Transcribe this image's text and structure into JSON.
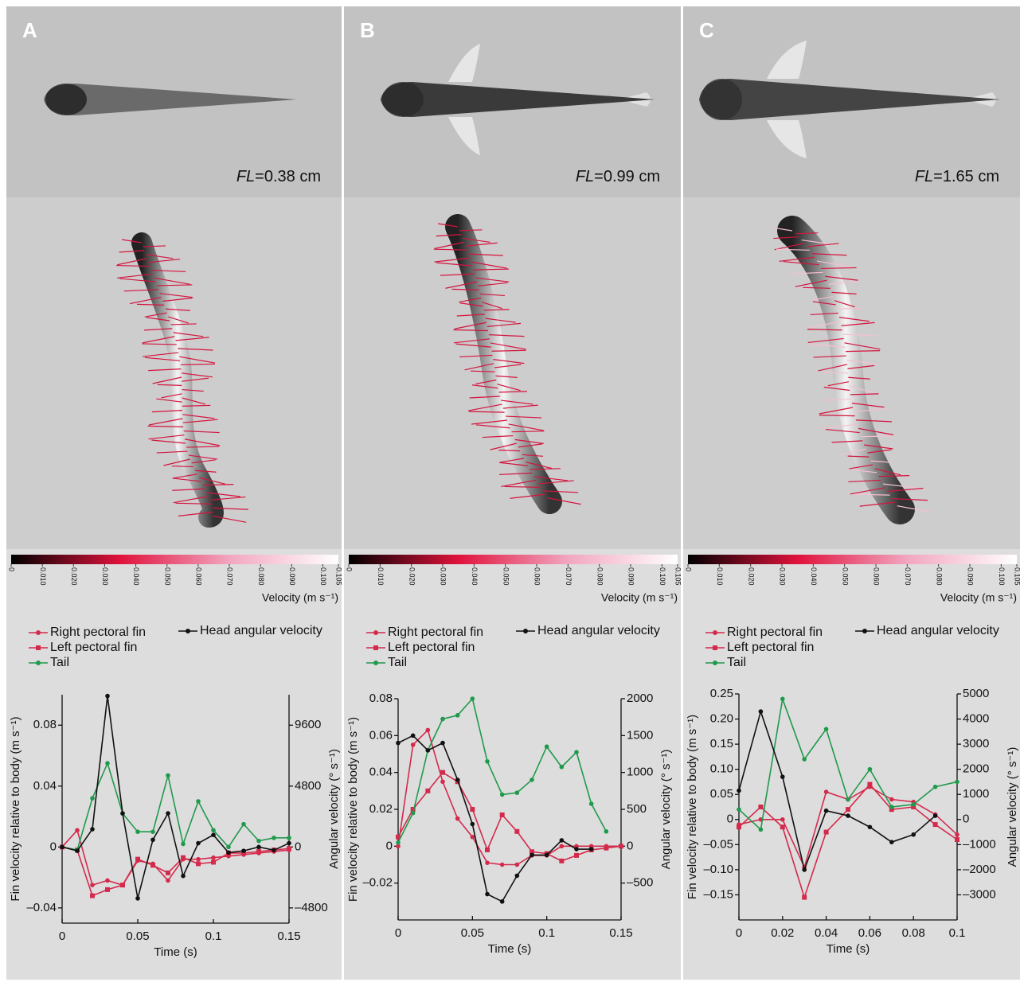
{
  "colorbar": {
    "label": "Velocity (m s⁻¹)",
    "lim": [
      0,
      0.105
    ],
    "colors": [
      "#000000",
      "#e0123c",
      "#f2a6c0",
      "#ffffff"
    ],
    "ticks": [
      0,
      {
        "value": 0.01,
        "label": "0.010"
      },
      {
        "value": 0.02,
        "label": "0.020"
      },
      {
        "value": 0.03,
        "label": "0.030"
      },
      {
        "value": 0.04,
        "label": "0.040"
      },
      {
        "value": 0.05,
        "label": "0.050"
      },
      {
        "value": 0.06,
        "label": "0.060"
      },
      {
        "value": 0.07,
        "label": "0.070"
      },
      {
        "value": 0.08,
        "label": "0.080"
      },
      {
        "value": 0.09,
        "label": "0.090"
      },
      {
        "value": 0.1,
        "label": "0.100"
      },
      0.105
    ]
  },
  "chart_data": [
    {
      "type": "line",
      "panel_label": "A",
      "fl_symbol": "FL",
      "fl_value": "=0.38 cm",
      "xlabel": "Time (s)",
      "ylabel": "Fin velocity relative to body (m s⁻¹)",
      "y2label": "Angular velocity (° s⁻¹)",
      "x": [
        0,
        0.01,
        0.02,
        0.03,
        0.04,
        0.05,
        0.06,
        0.07,
        0.08,
        0.09,
        0.1,
        0.11,
        0.12,
        0.13,
        0.14,
        0.15
      ],
      "xlim": [
        0,
        0.15
      ],
      "xticks": [
        0,
        0.05,
        0.1,
        0.15
      ],
      "ylim": [
        -0.05,
        0.1
      ],
      "yticks": [
        {
          "value": -0.04,
          "label": "–0.04"
        },
        0,
        0.04,
        0.08
      ],
      "y2lim": [
        -6000,
        12000
      ],
      "y2ticks": [
        {
          "value": -4800,
          "label": "–4800"
        },
        0,
        4800,
        9600
      ],
      "series": [
        {
          "name": "Right pectoral fin",
          "color": "#d42a4c",
          "marker": "circle",
          "values": [
            0,
            0.011,
            -0.025,
            -0.022,
            -0.025,
            -0.009,
            -0.011,
            -0.022,
            -0.008,
            -0.008,
            -0.007,
            -0.006,
            -0.005,
            -0.004,
            -0.003,
            -0.002
          ]
        },
        {
          "name": "Left pectoral fin",
          "color": "#d42a4c",
          "marker": "square",
          "values": [
            0,
            -0.002,
            -0.032,
            -0.028,
            -0.025,
            -0.008,
            -0.012,
            -0.017,
            -0.007,
            -0.011,
            -0.01,
            -0.004,
            -0.004,
            -0.003,
            -0.002,
            -0.001
          ]
        },
        {
          "name": "Tail",
          "color": "#1f9a4c",
          "marker": "circle",
          "values": [
            0,
            -0.002,
            0.032,
            0.055,
            0.022,
            0.01,
            0.01,
            0.047,
            0.002,
            0.03,
            0.011,
            0,
            0.015,
            0.004,
            0.006,
            0.006
          ]
        },
        {
          "name": "Head angular velocity",
          "color": "#111111",
          "marker": "circle",
          "axis": "y2",
          "values": [
            0,
            -300,
            1400,
            11900,
            2650,
            -4050,
            570,
            2650,
            -2280,
            300,
            950,
            -440,
            -300,
            0,
            -250,
            300
          ]
        }
      ]
    },
    {
      "type": "line",
      "panel_label": "B",
      "fl_symbol": "FL",
      "fl_value": "=0.99 cm",
      "xlabel": "Time (s)",
      "ylabel": "Fin velocity relative to body (m s⁻¹)",
      "y2label": "Angular velocity (° s⁻¹)",
      "x": [
        0,
        0.01,
        0.02,
        0.03,
        0.04,
        0.05,
        0.06,
        0.07,
        0.08,
        0.09,
        0.1,
        0.11,
        0.12,
        0.13,
        0.14,
        0.15
      ],
      "xlim": [
        0,
        0.15
      ],
      "xticks": [
        0,
        0.05,
        0.1,
        0.15
      ],
      "ylim": [
        -0.04,
        0.08
      ],
      "yticks": [
        {
          "value": -0.02,
          "label": "–0.02"
        },
        0,
        0.02,
        0.04,
        0.06,
        0.08
      ],
      "y2lim": [
        -1000,
        2000
      ],
      "y2ticks": [
        {
          "value": -500,
          "label": "–500"
        },
        0,
        500,
        1000,
        1500,
        2000
      ],
      "series": [
        {
          "name": "Right pectoral fin",
          "color": "#d42a4c",
          "marker": "circle",
          "values": [
            0,
            0.055,
            0.063,
            0.035,
            0.015,
            0.005,
            -0.009,
            -0.01,
            -0.01,
            -0.005,
            -0.005,
            0,
            0,
            0,
            0,
            0
          ]
        },
        {
          "name": "Left pectoral fin",
          "color": "#d42a4c",
          "marker": "square",
          "values": [
            0.005,
            0.02,
            0.03,
            0.04,
            0.035,
            0.02,
            -0.002,
            0.017,
            0.008,
            -0.003,
            -0.004,
            -0.008,
            -0.005,
            -0.002,
            -0.001,
            0
          ]
        },
        {
          "name": "Tail",
          "color": "#1f9a4c",
          "marker": "circle",
          "values": [
            0.002,
            0.018,
            0.052,
            0.069,
            0.071,
            0.08,
            0.046,
            0.028,
            0.029,
            0.036,
            0.054,
            0.043,
            0.051,
            0.023,
            0.008,
            null
          ]
        },
        {
          "name": "Head angular velocity",
          "color": "#111111",
          "marker": "circle",
          "axis": "y2",
          "values": [
            1400,
            1500,
            1300,
            1400,
            900,
            300,
            -650,
            -750,
            -400,
            -120,
            -120,
            80,
            -40,
            -40,
            null,
            null
          ]
        }
      ]
    },
    {
      "type": "line",
      "panel_label": "C",
      "fl_symbol": "FL",
      "fl_value": "=1.65 cm",
      "xlabel": "Time (s)",
      "ylabel": "Fin velocity relative to body (m s⁻¹)",
      "y2label": "Angular velocity (° s⁻¹)",
      "x": [
        0,
        0.01,
        0.02,
        0.03,
        0.04,
        0.05,
        0.06,
        0.07,
        0.08,
        0.09,
        0.1
      ],
      "xlim": [
        0,
        0.1
      ],
      "xticks": [
        0,
        0.02,
        0.04,
        0.06,
        0.08,
        0.1
      ],
      "ylim": [
        -0.2,
        0.25
      ],
      "yticks": [
        {
          "value": -0.15,
          "label": "–0.15"
        },
        {
          "value": -0.1,
          "label": "–0.10"
        },
        {
          "value": -0.05,
          "label": "–0.05"
        },
        0,
        0.05,
        {
          "value": 0.1,
          "label": "0.10"
        },
        0.15,
        {
          "value": 0.2,
          "label": "0.20"
        },
        0.25
      ],
      "y2lim": [
        -4000,
        5000
      ],
      "y2ticks": [
        {
          "value": -3000,
          "label": "–3000"
        },
        {
          "value": -2000,
          "label": "–2000"
        },
        {
          "value": -1000,
          "label": "–1000"
        },
        0,
        1000,
        2000,
        3000,
        4000,
        5000
      ],
      "series": [
        {
          "name": "Right pectoral fin",
          "color": "#d42a4c",
          "marker": "circle",
          "values": [
            -0.01,
            0,
            0,
            -0.095,
            0.055,
            0.04,
            0.065,
            0.04,
            0.035,
            0.01,
            -0.03
          ]
        },
        {
          "name": "Left pectoral fin",
          "color": "#d42a4c",
          "marker": "square",
          "values": [
            -0.015,
            0.025,
            -0.015,
            -0.155,
            -0.025,
            0.02,
            0.07,
            0.02,
            0.025,
            -0.01,
            -0.04
          ]
        },
        {
          "name": "Tail",
          "color": "#1f9a4c",
          "marker": "circle",
          "values": [
            0.02,
            -0.02,
            0.24,
            0.12,
            0.18,
            0.04,
            0.1,
            0.025,
            0.03,
            0.065,
            0.075
          ]
        },
        {
          "name": "Head angular velocity",
          "color": "#111111",
          "marker": "circle",
          "axis": "y2",
          "values": [
            1150,
            4300,
            1700,
            -2000,
            350,
            150,
            -300,
            -900,
            -600,
            150,
            null
          ]
        }
      ]
    }
  ]
}
